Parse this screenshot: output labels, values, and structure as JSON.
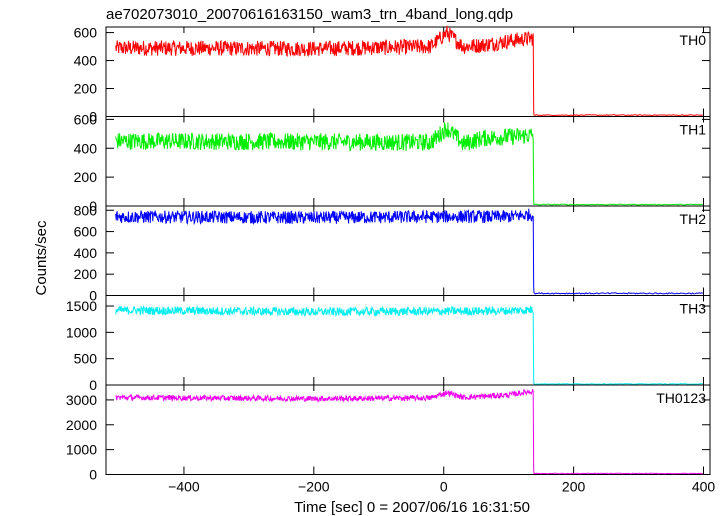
{
  "chart_data": {
    "type": "line",
    "title": "ae702073010_20070616163150_wam3_trn_4band_long.qdp",
    "xlabel": "Time [sec] 0 = 2007/06/16 16:31:50",
    "ylabel": "Counts/sec",
    "xlim": [
      -520,
      410
    ],
    "x_ticks": [
      -400,
      -200,
      0,
      200,
      400
    ],
    "x_tick_labels": [
      "−400",
      "−200",
      "0",
      "200",
      "400"
    ],
    "drop_time": 138,
    "series": [
      {
        "name": "TH0",
        "color": "#ff0000",
        "ylim": [
          0,
          640
        ],
        "ticks": [
          0,
          200,
          400,
          600
        ],
        "tick_labels": [
          "0",
          "200",
          "400",
          "600"
        ],
        "profile": [
          [
            -505,
            490
          ],
          [
            -200,
            485
          ],
          [
            -20,
            500
          ],
          [
            5,
            600
          ],
          [
            30,
            500
          ],
          [
            60,
            510
          ],
          [
            100,
            540
          ],
          [
            136,
            560
          ]
        ],
        "noise": 55,
        "tail": 10
      },
      {
        "name": "TH1",
        "color": "#00ee00",
        "ylim": [
          0,
          620
        ],
        "ticks": [
          0,
          200,
          400,
          600
        ],
        "tick_labels": [
          "0",
          "200",
          "400",
          "600"
        ],
        "profile": [
          [
            -505,
            450
          ],
          [
            -200,
            445
          ],
          [
            -20,
            440
          ],
          [
            5,
            540
          ],
          [
            30,
            430
          ],
          [
            60,
            470
          ],
          [
            100,
            480
          ],
          [
            136,
            490
          ]
        ],
        "noise": 60,
        "tail": 10
      },
      {
        "name": "TH2",
        "color": "#0000ff",
        "ylim": [
          0,
          840
        ],
        "ticks": [
          0,
          200,
          400,
          600,
          800
        ],
        "tick_labels": [
          "0",
          "200",
          "400",
          "600",
          "800"
        ],
        "profile": [
          [
            -505,
            740
          ],
          [
            -200,
            730
          ],
          [
            0,
            740
          ],
          [
            100,
            740
          ],
          [
            136,
            760
          ]
        ],
        "noise": 60,
        "tail": 20
      },
      {
        "name": "TH3",
        "color": "#00eeee",
        "ylim": [
          0,
          1700
        ],
        "ticks": [
          0,
          500,
          1000,
          1500
        ],
        "tick_labels": [
          "0",
          "500",
          "1000",
          "1500"
        ],
        "profile": [
          [
            -505,
            1420
          ],
          [
            -200,
            1390
          ],
          [
            0,
            1400
          ],
          [
            100,
            1410
          ],
          [
            136,
            1430
          ]
        ],
        "noise": 80,
        "tail": 20
      },
      {
        "name": "TH0123",
        "color": "#ee00ee",
        "ylim": [
          0,
          3600
        ],
        "ticks": [
          0,
          1000,
          2000,
          3000
        ],
        "tick_labels": [
          "0",
          "1000",
          "2000",
          "3000"
        ],
        "profile": [
          [
            -505,
            3100
          ],
          [
            -200,
            3050
          ],
          [
            -20,
            3080
          ],
          [
            5,
            3300
          ],
          [
            30,
            3100
          ],
          [
            100,
            3200
          ],
          [
            136,
            3350
          ]
        ],
        "noise": 110,
        "tail": 40
      }
    ]
  }
}
